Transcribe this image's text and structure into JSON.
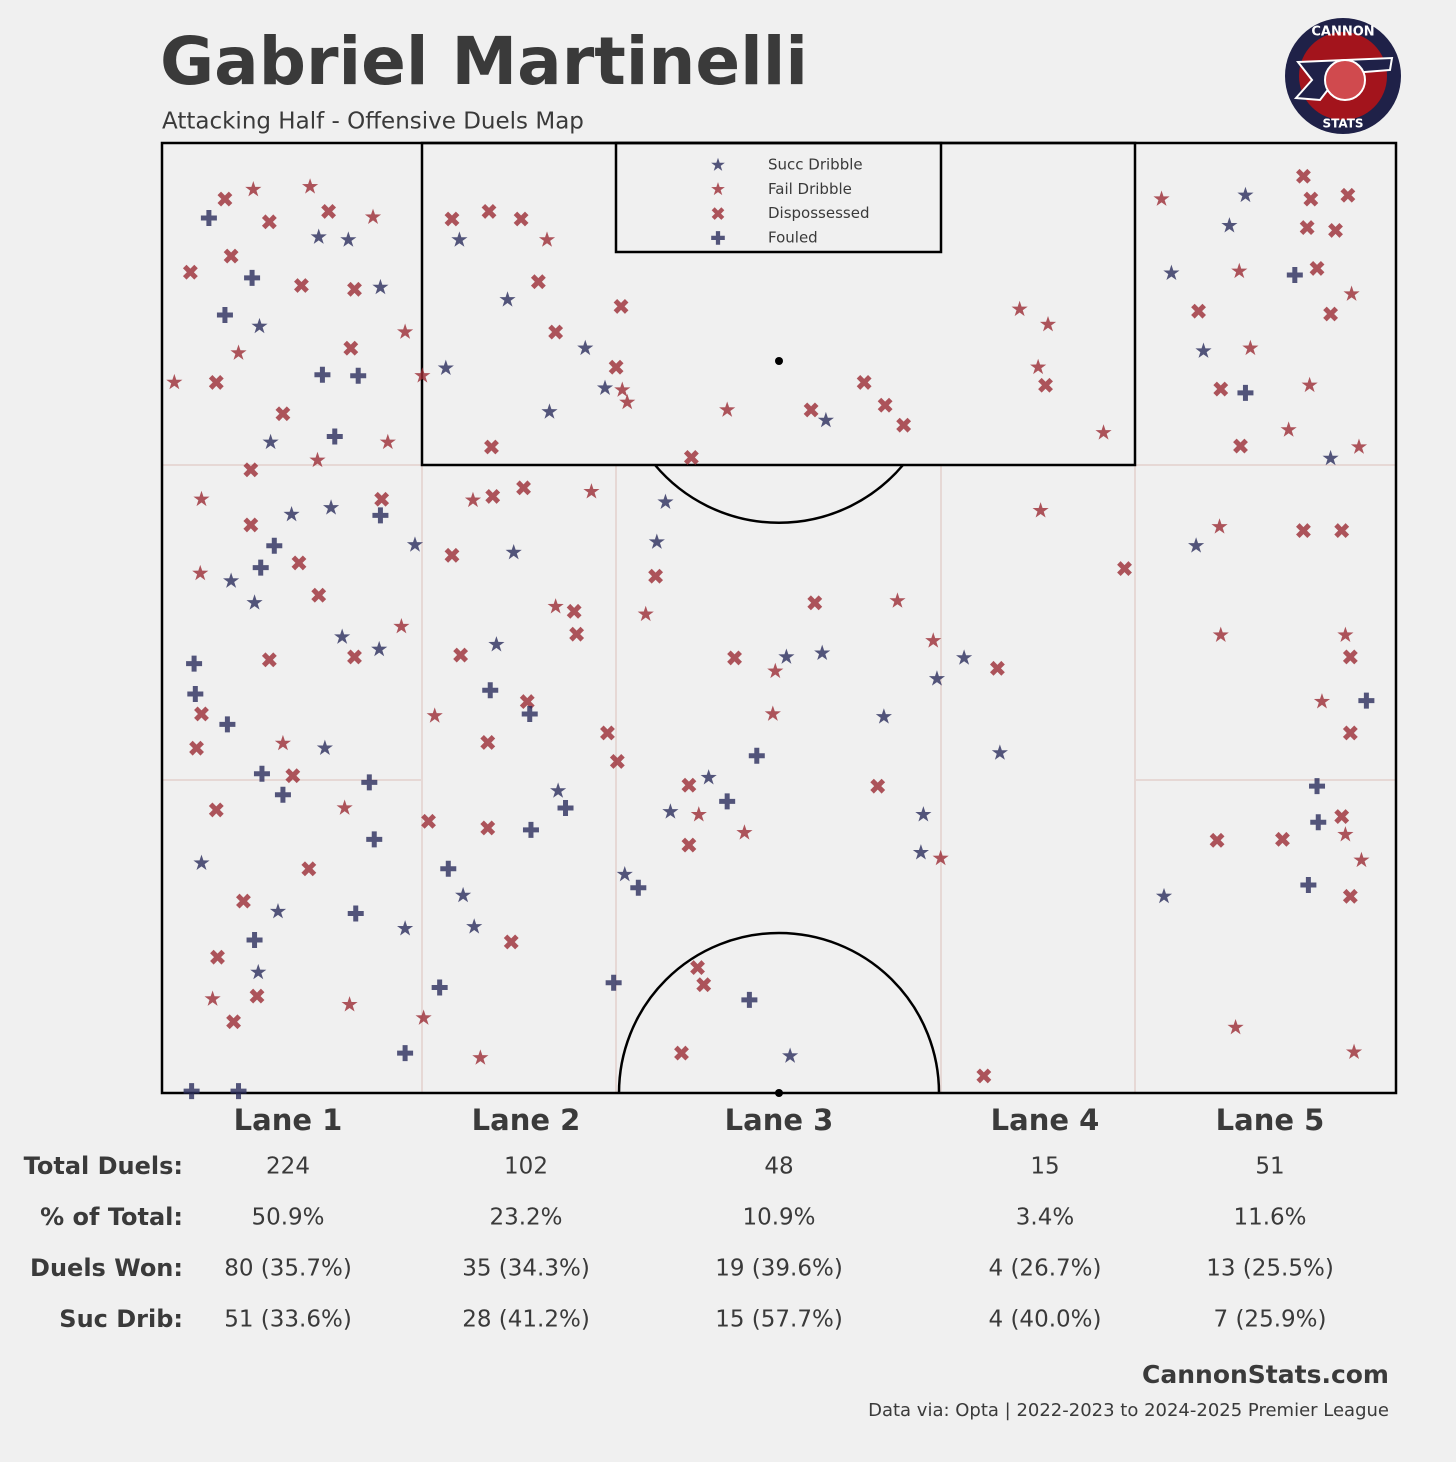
{
  "chart_data": {
    "type": "scatter",
    "title": "Gabriel Martinelli",
    "subtitle": "Attacking Half - Offensive Duels Map",
    "xlim": [
      0,
      100
    ],
    "ylim": [
      0,
      100
    ],
    "series": [
      {
        "name": "Succ Dribble",
        "color": "#2b2d5c",
        "marker": "star",
        "x": [
          12.7,
          7.9,
          8.8,
          13.7,
          10.5,
          5.6,
          7.5,
          14.6,
          17.6,
          13.2,
          20.5,
          28.5,
          27.1,
          32.1,
          40.8,
          40.1,
          50.6,
          53.5,
          58.5,
          62.8,
          65.0,
          67.9,
          61.7,
          61.5,
          37.5,
          24.4,
          25.3,
          19.7,
          9.4,
          7.8,
          3.2,
          86.5,
          87.8,
          81.8,
          84.4,
          83.8,
          94.7,
          81.2,
          50.9,
          31.4,
          34.3,
          35.9,
          28.0,
          23.0,
          24.1,
          41.2,
          44.3,
          53.8,
          17.7,
          15.1
        ],
        "y": [
          90.1,
          80.7,
          68.5,
          61.6,
          60.9,
          53.9,
          51.6,
          48.0,
          46.7,
          36.3,
          57.7,
          56.9,
          47.2,
          31.8,
          62.2,
          58.0,
          45.9,
          46.3,
          39.6,
          43.6,
          45.8,
          35.8,
          29.3,
          25.3,
          23.0,
          20.8,
          17.5,
          17.3,
          19.1,
          12.7,
          24.2,
          91.3,
          94.5,
          86.3,
          78.1,
          57.6,
          66.8,
          20.7,
          3.9,
          71.7,
          78.4,
          74.2,
          83.5,
          76.3,
          89.8,
          29.6,
          33.2,
          70.8,
          84.8,
          89.8
        ]
      },
      {
        "name": "Fail Dribble",
        "color": "#9b2c35",
        "marker": "star",
        "x": [
          7.4,
          12.0,
          17.1,
          1.0,
          6.2,
          19.7,
          18.3,
          12.6,
          3.2,
          3.1,
          19.4,
          9.8,
          14.8,
          15.2,
          4.1,
          25.2,
          34.8,
          31.9,
          39.2,
          22.1,
          21.2,
          25.8,
          45.8,
          49.7,
          49.5,
          47.2,
          43.5,
          59.6,
          62.5,
          63.1,
          69.5,
          71.8,
          71.0,
          76.3,
          71.2,
          81.0,
          87.3,
          96.4,
          88.2,
          93.0,
          91.3,
          97.0,
          85.7,
          85.8,
          95.9,
          94.0,
          97.2,
          95.9,
          87.0,
          96.6,
          31.2,
          37.3,
          37.7,
          21.1
        ],
        "y": [
          95.1,
          95.4,
          92.2,
          74.8,
          77.9,
          80.1,
          68.5,
          66.6,
          62.5,
          54.7,
          49.1,
          36.8,
          30.0,
          9.3,
          9.9,
          62.4,
          63.3,
          51.2,
          50.4,
          39.7,
          7.9,
          3.7,
          71.9,
          44.4,
          39.9,
          27.4,
          29.3,
          51.8,
          47.6,
          24.7,
          82.5,
          80.9,
          76.4,
          69.5,
          61.3,
          94.1,
          86.5,
          84.1,
          78.4,
          74.5,
          69.8,
          68.0,
          59.6,
          48.2,
          48.2,
          41.2,
          24.5,
          27.2,
          6.9,
          4.3,
          89.8,
          74.0,
          72.7,
          75.5
        ]
      },
      {
        "name": "Dispossessed",
        "color": "#9b2c35",
        "marker": "x",
        "x": [
          5.1,
          8.7,
          13.5,
          2.3,
          5.6,
          11.3,
          15.6,
          15.3,
          4.4,
          9.8,
          7.2,
          17.8,
          7.2,
          11.1,
          12.7,
          15.6,
          8.7,
          3.2,
          2.8,
          10.6,
          4.4,
          11.9,
          6.6,
          4.5,
          7.7,
          5.8,
          23.5,
          26.5,
          29.1,
          30.5,
          31.9,
          37.2,
          36.8,
          26.7,
          26.8,
          23.5,
          29.3,
          33.4,
          33.6,
          24.2,
          29.6,
          26.4,
          36.1,
          36.9,
          26.4,
          21.6,
          28.3,
          40.0,
          42.9,
          46.4,
          52.9,
          56.9,
          58.6,
          60.1,
          52.6,
          42.7,
          42.7,
          58.0,
          67.7,
          78.0,
          71.6,
          43.4,
          43.9,
          42.1,
          66.6,
          92.5,
          93.1,
          96.1,
          92.8,
          95.1,
          93.6,
          84.0,
          94.7,
          85.8,
          87.4,
          92.5,
          95.6,
          96.3,
          96.3,
          95.6,
          85.5,
          90.8,
          96.3
        ],
        "y": [
          94.1,
          91.7,
          92.8,
          86.4,
          88.1,
          85.0,
          84.6,
          78.4,
          74.8,
          71.5,
          65.6,
          62.5,
          59.8,
          55.8,
          52.4,
          45.9,
          45.6,
          39.9,
          36.3,
          33.4,
          29.8,
          23.6,
          20.2,
          14.3,
          10.2,
          7.5,
          92.0,
          92.8,
          92.0,
          85.4,
          80.1,
          82.8,
          76.4,
          68.0,
          62.8,
          56.6,
          63.7,
          50.7,
          48.3,
          46.1,
          41.2,
          36.9,
          37.9,
          34.9,
          27.9,
          28.6,
          15.9,
          54.4,
          66.9,
          45.8,
          51.6,
          74.8,
          72.4,
          70.3,
          71.9,
          32.4,
          26.1,
          32.3,
          44.7,
          55.2,
          74.5,
          13.2,
          11.4,
          4.2,
          1.8,
          96.5,
          94.1,
          94.5,
          91.1,
          90.8,
          86.8,
          82.3,
          82.0,
          74.1,
          68.1,
          59.2,
          59.2,
          45.9,
          37.9,
          29.1,
          26.6,
          26.7,
          20.7
        ]
      },
      {
        "name": "Fouled",
        "color": "#2b2d5c",
        "marker": "plus",
        "x": [
          3.8,
          5.1,
          7.3,
          13.0,
          15.9,
          14.0,
          17.7,
          9.1,
          8.0,
          2.6,
          2.7,
          5.3,
          8.1,
          9.8,
          16.8,
          17.2,
          15.7,
          7.5,
          2.4,
          6.2,
          19.7,
          22.5,
          23.2,
          29.9,
          32.7,
          29.8,
          26.6,
          38.6,
          45.8,
          48.2,
          47.6,
          36.6,
          91.8,
          87.8,
          97.6,
          93.6,
          93.7,
          92.9
        ],
        "y": [
          92.1,
          81.9,
          85.8,
          75.6,
          75.5,
          69.1,
          60.8,
          57.6,
          55.3,
          45.2,
          42.0,
          38.8,
          33.6,
          31.4,
          32.7,
          26.7,
          18.9,
          16.1,
          0.2,
          0.2,
          4.2,
          11.1,
          23.6,
          27.7,
          30.0,
          39.9,
          42.4,
          21.6,
          30.7,
          35.5,
          9.8,
          11.6,
          86.1,
          73.7,
          41.3,
          32.3,
          28.5,
          21.9
        ]
      }
    ]
  },
  "logo": {
    "top": "CANNON",
    "bottom": "STATS"
  },
  "table": {
    "columns": [
      "Lane 1",
      "Lane 2",
      "Lane 3",
      "Lane 4",
      "Lane 5"
    ],
    "rows": [
      {
        "label": "Total Duels:",
        "cells": [
          "224",
          "102",
          "48",
          "15",
          "51"
        ]
      },
      {
        "label": "% of Total:",
        "cells": [
          "50.9%",
          "23.2%",
          "10.9%",
          "3.4%",
          "11.6%"
        ]
      },
      {
        "label": "Duels Won:",
        "cells": [
          "80 (35.7%)",
          "35 (34.3%)",
          "19 (39.6%)",
          "4 (26.7%)",
          "13 (25.5%)"
        ]
      },
      {
        "label": "Suc Drib:",
        "cells": [
          "51 (33.6%)",
          "28 (41.2%)",
          "15 (57.7%)",
          "4 (40.0%)",
          "7 (25.9%)"
        ]
      }
    ]
  },
  "footer": {
    "site": "CannonStats.com",
    "source": "Data via: Opta | 2022-2023 to 2024-2025 Premier League"
  }
}
